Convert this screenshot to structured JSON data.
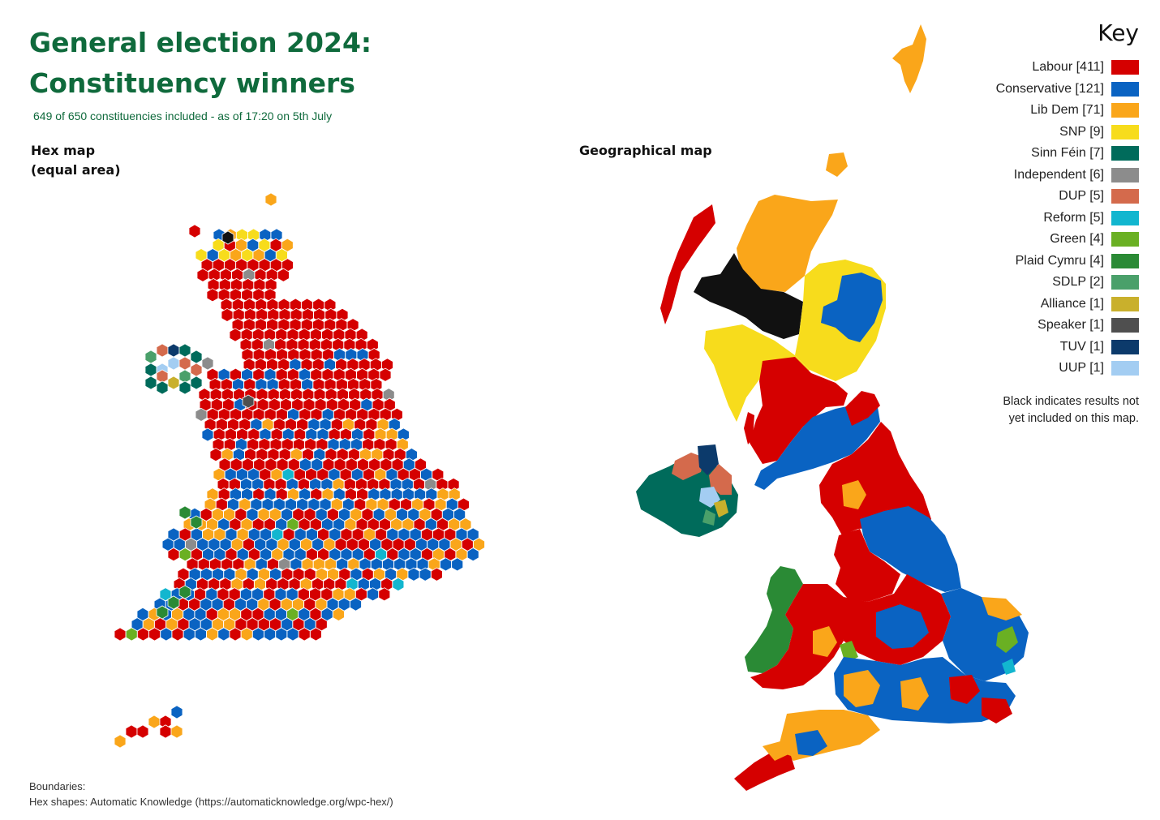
{
  "header": {
    "title_line1": "General election 2024:",
    "title_line2": "Constituency winners",
    "subtitle": "649 of 650 constituencies included - as of 17:20 on 5th July"
  },
  "hex_map": {
    "label_line1": "Hex map",
    "label_line2": "(equal area)"
  },
  "geo_map": {
    "label": "Geographical map"
  },
  "key": {
    "title": "Key",
    "items": [
      {
        "label": "Labour [411]",
        "color": "#d50000"
      },
      {
        "label": "Conservative [121]",
        "color": "#0a63c2"
      },
      {
        "label": "Lib Dem [71]",
        "color": "#faa61a"
      },
      {
        "label": "SNP [9]",
        "color": "#f7dc1c"
      },
      {
        "label": "Sinn Féin [7]",
        "color": "#006b5b"
      },
      {
        "label": "Independent [6]",
        "color": "#8c8c8c"
      },
      {
        "label": "DUP [5]",
        "color": "#d46a4c"
      },
      {
        "label": "Reform [5]",
        "color": "#12b6cf"
      },
      {
        "label": "Green [4]",
        "color": "#6ab023"
      },
      {
        "label": "Plaid Cymru [4]",
        "color": "#2a8a35"
      },
      {
        "label": "SDLP [2]",
        "color": "#4aa06a"
      },
      {
        "label": "Alliance [1]",
        "color": "#c9b02c"
      },
      {
        "label": "Speaker [1]",
        "color": "#4f4f4f"
      },
      {
        "label": "TUV [1]",
        "color": "#0c3a6b"
      },
      {
        "label": "UUP [1]",
        "color": "#a3cdf2"
      }
    ],
    "note_line1": "Black indicates results not",
    "note_line2": "yet included on this map."
  },
  "footer": {
    "line1": "Boundaries:",
    "line2": "Hex shapes: Automatic Knowledge (https://automaticknowledge.org/wpc-hex/)"
  }
}
